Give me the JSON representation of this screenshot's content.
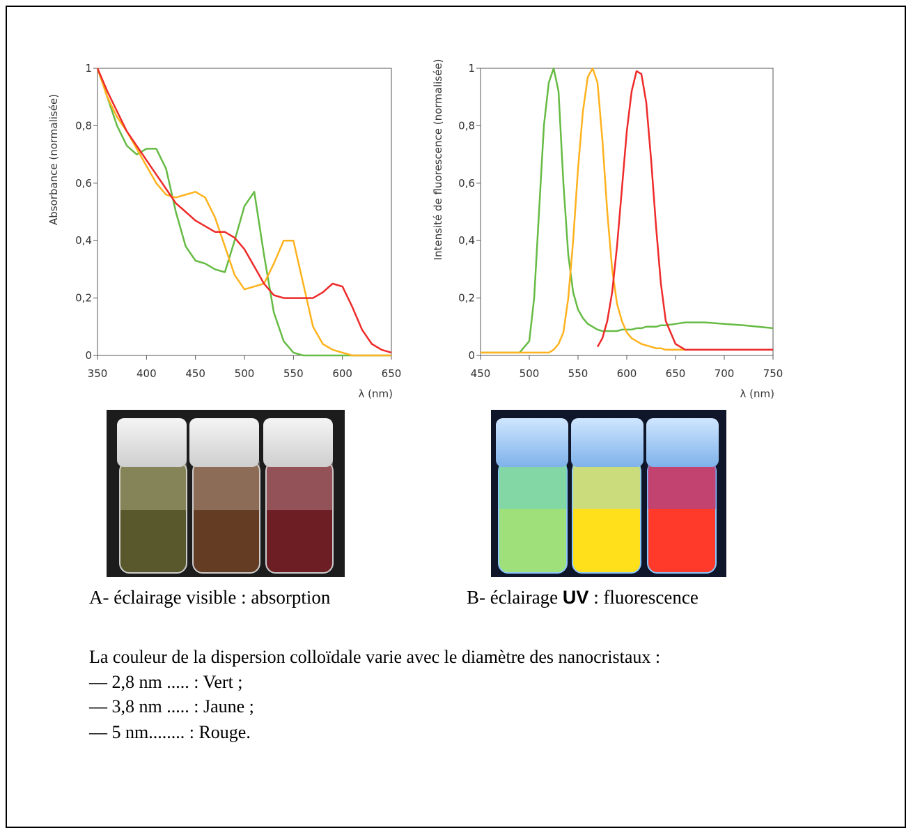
{
  "chart_data": [
    {
      "type": "line",
      "y_label": "Absorbance (normalisée)",
      "x_label": "λ (nm)",
      "x": [
        350,
        360,
        370,
        380,
        390,
        400,
        410,
        420,
        430,
        440,
        450,
        460,
        470,
        480,
        490,
        500,
        510,
        520,
        530,
        540,
        550,
        560,
        570,
        580,
        590,
        600,
        610,
        620,
        630,
        640,
        650
      ],
      "series": [
        {
          "color": "#66bb44",
          "values": [
            1.0,
            0.9,
            0.8,
            0.73,
            0.7,
            0.72,
            0.72,
            0.65,
            0.5,
            0.38,
            0.33,
            0.32,
            0.3,
            0.29,
            0.4,
            0.52,
            0.57,
            0.35,
            0.15,
            0.05,
            0.01,
            0,
            0,
            0,
            0,
            0,
            0,
            0,
            0,
            0,
            0
          ]
        },
        {
          "color": "#ffb21e",
          "values": [
            1.0,
            0.9,
            0.83,
            0.78,
            0.72,
            0.66,
            0.6,
            0.56,
            0.55,
            0.56,
            0.57,
            0.55,
            0.48,
            0.38,
            0.28,
            0.23,
            0.24,
            0.25,
            0.32,
            0.4,
            0.4,
            0.25,
            0.1,
            0.04,
            0.02,
            0.01,
            0,
            0,
            0,
            0,
            0
          ]
        },
        {
          "color": "#ee2a2a",
          "values": [
            1.0,
            0.92,
            0.85,
            0.78,
            0.73,
            0.68,
            0.63,
            0.58,
            0.53,
            0.5,
            0.47,
            0.45,
            0.43,
            0.43,
            0.41,
            0.37,
            0.31,
            0.25,
            0.21,
            0.2,
            0.2,
            0.2,
            0.2,
            0.22,
            0.25,
            0.24,
            0.17,
            0.09,
            0.04,
            0.02,
            0.01
          ]
        }
      ],
      "xlim": [
        350,
        650
      ],
      "xticks": [
        350,
        400,
        450,
        500,
        550,
        600,
        650
      ],
      "ylim": [
        0,
        1
      ],
      "yticks": [
        0,
        {
          "value": 0.2,
          "label": "0,2"
        },
        {
          "value": 0.4,
          "label": "0,4"
        },
        {
          "value": 0.6,
          "label": "0,6"
        },
        {
          "value": 0.8,
          "label": "0,8"
        },
        1
      ]
    },
    {
      "type": "line",
      "y_label": "Intensité de fluorescence (normalisée)",
      "x_label": "λ (nm)",
      "x": [
        450,
        470,
        490,
        500,
        505,
        510,
        515,
        520,
        525,
        530,
        535,
        540,
        545,
        550,
        555,
        560,
        565,
        570,
        575,
        580,
        585,
        590,
        595,
        600,
        605,
        610,
        615,
        620,
        625,
        630,
        635,
        640,
        650,
        660,
        680,
        700,
        720,
        750
      ],
      "series": [
        {
          "color": "#66bb44",
          "values": [
            0.01,
            0.01,
            0.01,
            0.05,
            0.2,
            0.5,
            0.8,
            0.95,
            1.0,
            0.92,
            0.6,
            0.35,
            0.22,
            0.16,
            0.13,
            0.11,
            0.1,
            0.09,
            0.085,
            0.085,
            0.085,
            0.085,
            0.09,
            0.09,
            0.09,
            0.095,
            0.095,
            0.1,
            0.1,
            0.1,
            0.105,
            0.105,
            0.11,
            0.115,
            0.115,
            0.11,
            0.105,
            0.095
          ]
        },
        {
          "color": "#ffb21e",
          "values": [
            0.01,
            0.01,
            0.01,
            0.01,
            0.01,
            0.01,
            0.01,
            0.01,
            0.02,
            0.04,
            0.08,
            0.2,
            0.4,
            0.65,
            0.85,
            0.97,
            1.0,
            0.95,
            0.75,
            0.5,
            0.3,
            0.18,
            0.12,
            0.08,
            0.06,
            0.05,
            0.04,
            0.035,
            0.03,
            0.025,
            0.025,
            0.02,
            0.02,
            0.02,
            0.02,
            0.02,
            0.02,
            0.02
          ]
        },
        {
          "color": "#ee2a2a",
          "values": [
            null,
            null,
            null,
            null,
            null,
            null,
            null,
            null,
            null,
            null,
            null,
            null,
            null,
            null,
            null,
            null,
            null,
            0.03,
            0.06,
            0.12,
            0.22,
            0.38,
            0.58,
            0.78,
            0.92,
            0.99,
            0.98,
            0.88,
            0.68,
            0.45,
            0.25,
            0.12,
            0.04,
            0.02,
            0.02,
            0.02,
            0.02,
            0.02
          ]
        }
      ],
      "xlim": [
        450,
        750
      ],
      "xticks": [
        450,
        500,
        550,
        600,
        650,
        700,
        750
      ],
      "ylim": [
        0,
        1
      ],
      "yticks": [
        0,
        {
          "value": 0.2,
          "label": "0,2"
        },
        {
          "value": 0.4,
          "label": "0,4"
        },
        {
          "value": 0.6,
          "label": "0,6"
        },
        {
          "value": 0.8,
          "label": "0,8"
        },
        1
      ]
    }
  ],
  "captions": {
    "a": "A- éclairage visible : absorption",
    "b_start": "B- éclairage ",
    "b_bold": "UV",
    "b_end": " : fluorescence"
  },
  "text": {
    "intro": "La couleur de la dispersion colloïdale varie avec le diamètre des nanocristaux :",
    "items": [
      "— 2,8 nm ..... : Vert ;",
      "— 3,8 nm ..... : Jaune ;",
      "— 5 nm........ : Rouge."
    ]
  }
}
